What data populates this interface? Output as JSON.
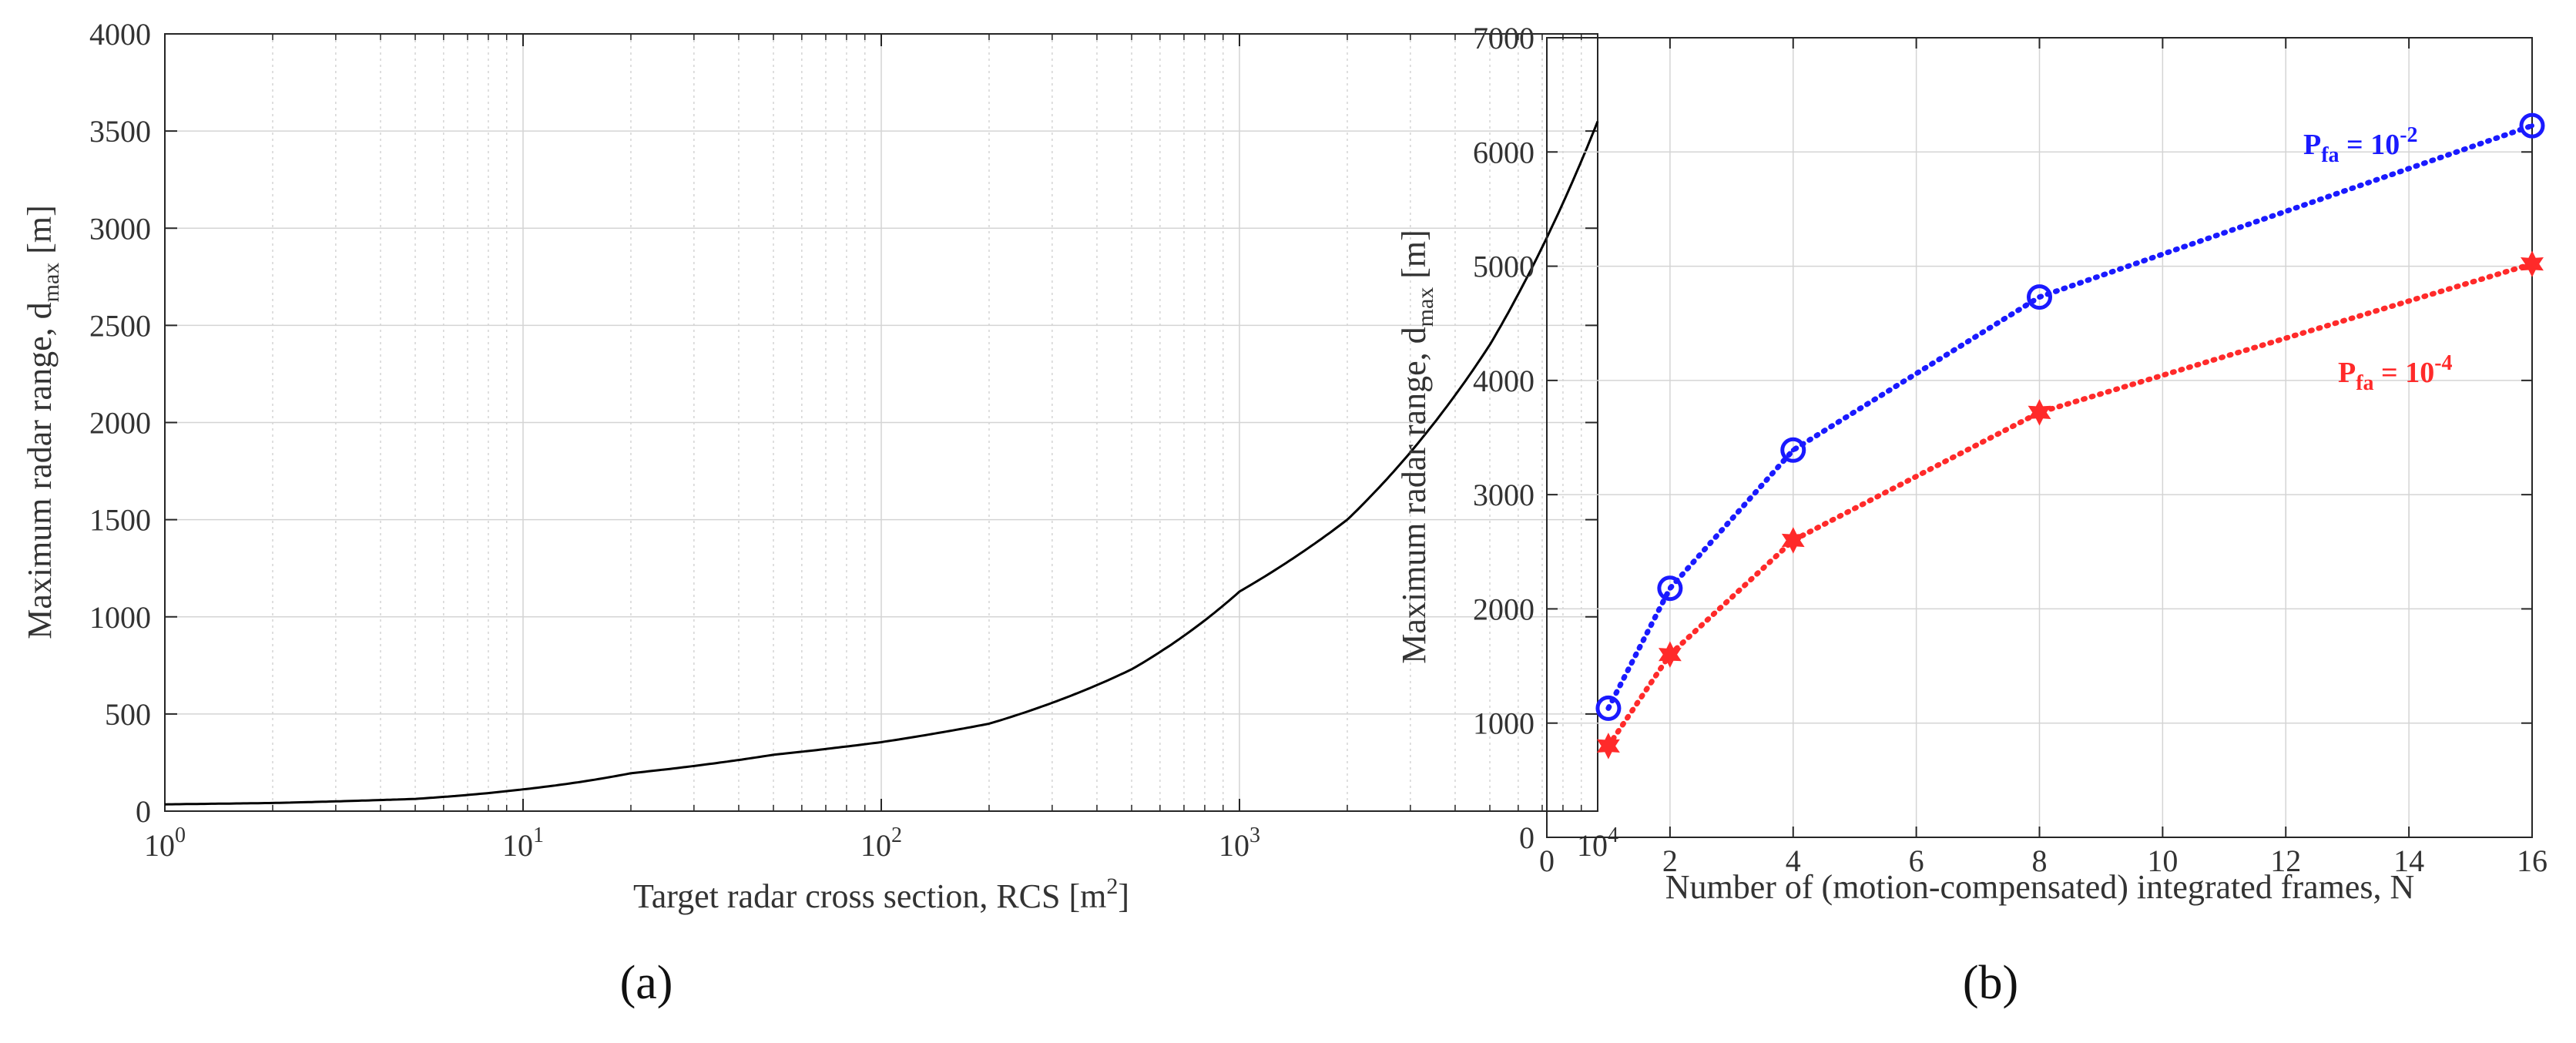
{
  "chart_data": [
    {
      "type": "line",
      "panel_label": "(a)",
      "xscale": "log",
      "xlabel": "Target radar cross section, RCS [m",
      "xlabel_sup": "2",
      "xlabel_end": "]",
      "ylabel": "Maximum radar range, d",
      "ylabel_sub": "max",
      "ylabel_end": " [m]",
      "xlim": [
        1,
        10000
      ],
      "ylim": [
        0,
        4000
      ],
      "xticks": [
        {
          "base": "10",
          "exp": "0"
        },
        {
          "base": "10",
          "exp": "1"
        },
        {
          "base": "10",
          "exp": "2"
        },
        {
          "base": "10",
          "exp": "3"
        },
        {
          "base": "10",
          "exp": "4"
        }
      ],
      "yticks": [
        "0",
        "500",
        "1000",
        "1500",
        "2000",
        "2500",
        "3000",
        "3500",
        "4000"
      ],
      "grid": true,
      "series": [
        {
          "name": "d_max",
          "color": "#000000",
          "x": [
            1,
            2,
            5,
            10,
            20,
            50,
            100,
            200,
            500,
            1000,
            2000,
            5000,
            10000
          ],
          "y": [
            35,
            42,
            63,
            112,
            195,
            290,
            355,
            450,
            730,
            1130,
            1500,
            2400,
            3550
          ]
        }
      ]
    },
    {
      "type": "line",
      "panel_label": "(b)",
      "xlabel": "Number of (motion-compensated) integrated frames, N",
      "ylabel": "Maximum radar range, d",
      "ylabel_sub": "max",
      "ylabel_end": " [m]",
      "xlim": [
        0,
        16
      ],
      "ylim": [
        0,
        7000
      ],
      "xticks": [
        "0",
        "2",
        "4",
        "6",
        "8",
        "10",
        "12",
        "14",
        "16"
      ],
      "yticks": [
        "0",
        "1000",
        "2000",
        "3000",
        "4000",
        "5000",
        "6000",
        "7000"
      ],
      "grid": true,
      "series": [
        {
          "name": "P_fa = 10^-2",
          "label_base": "P",
          "label_sub": "fa",
          "label_mid": " = 10",
          "label_sup": "-2",
          "color": "#1a1aff",
          "marker": "circle",
          "x": [
            1,
            2,
            4,
            8,
            16
          ],
          "y": [
            1130,
            2180,
            3390,
            4730,
            6230
          ]
        },
        {
          "name": "P_fa = 10^-4",
          "label_base": "P",
          "label_sub": "fa",
          "label_mid": " = 10",
          "label_sup": "-4",
          "color": "#ff2a2a",
          "marker": "star",
          "x": [
            1,
            2,
            4,
            8,
            16
          ],
          "y": [
            800,
            1600,
            2600,
            3720,
            5020
          ]
        }
      ]
    }
  ]
}
